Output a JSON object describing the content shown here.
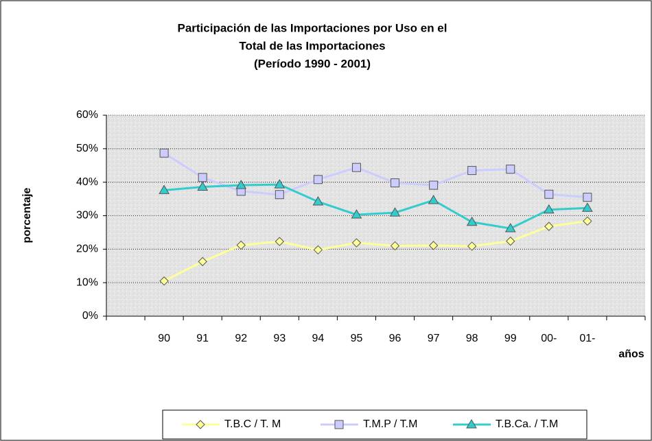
{
  "chart_data": {
    "type": "line",
    "title": [
      "Participación de las Importaciones por Uso en el",
      "Total de las Importaciones",
      "(Período 1990 - 2001)"
    ],
    "y_label": "porcentaje",
    "x_label": "años",
    "categories": [
      null,
      "90",
      "91",
      "92",
      "93",
      "94",
      "95",
      "96",
      "97",
      "98",
      "99",
      "00-",
      "01-",
      null
    ],
    "series": [
      {
        "name": "T.B.C / T. M",
        "color": "#ffff99",
        "marker": "diamond",
        "values": [
          null,
          10.5,
          16.3,
          21.2,
          22.3,
          19.8,
          21.9,
          21.0,
          21.1,
          20.9,
          22.4,
          26.8,
          28.4,
          null
        ]
      },
      {
        "name": "T.M.P / T.M",
        "color": "#ccccff",
        "marker": "square",
        "values": [
          null,
          48.7,
          41.4,
          37.3,
          36.3,
          40.8,
          44.4,
          39.8,
          39.1,
          43.5,
          43.9,
          36.4,
          35.5,
          null
        ]
      },
      {
        "name": "T.B.Ca. / T.M",
        "color": "#33cccc",
        "marker": "triangle",
        "values": [
          null,
          37.6,
          38.6,
          39.1,
          39.3,
          34.2,
          30.3,
          30.9,
          34.6,
          28.1,
          26.2,
          31.8,
          32.3,
          null
        ]
      }
    ],
    "ylim": [
      0,
      60
    ],
    "yticks": [
      {
        "value": 0,
        "label": "0%"
      },
      {
        "value": 10,
        "label": "10%"
      },
      {
        "value": 20,
        "label": "20%"
      },
      {
        "value": 30,
        "label": "30%"
      },
      {
        "value": 40,
        "label": "40%"
      },
      {
        "value": 50,
        "label": "50%"
      },
      {
        "value": 60,
        "label": "60%"
      }
    ],
    "grid": true
  }
}
